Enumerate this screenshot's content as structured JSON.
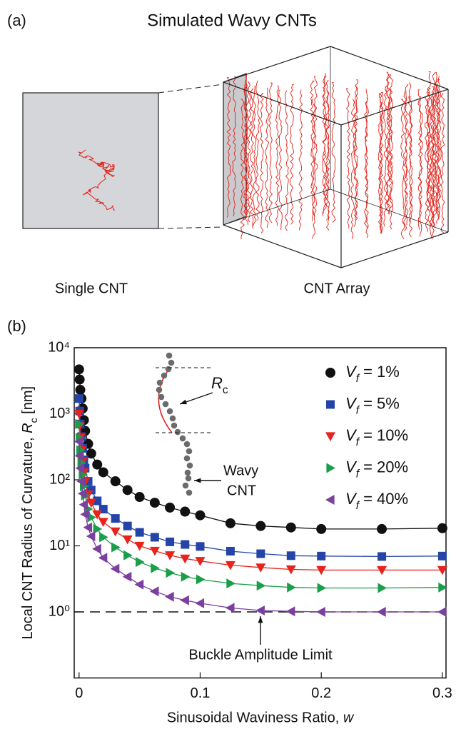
{
  "panel_a": {
    "label": "(a)",
    "title": "Simulated Wavy CNTs",
    "left_caption": "Single CNT",
    "right_caption": "CNT Array"
  },
  "chart_data": {
    "type": "line",
    "panel_label": "(b)",
    "xlabel": "Sinusoidal Waviness Ratio, w",
    "ylabel": "Local CNT Radius of Curvature, Rc [nm]",
    "log_y": true,
    "xlim": [
      -0.004,
      0.303
    ],
    "xticks": [
      0,
      0.1,
      0.2,
      0.3
    ],
    "ylim": [
      0.1,
      10000
    ],
    "yticks": [
      {
        "value": 1,
        "label": "10⁰"
      },
      {
        "value": 10,
        "label": "10¹"
      },
      {
        "value": 100,
        "label": "10²"
      },
      {
        "value": 1000,
        "label": "10³"
      },
      {
        "value": 10000,
        "label": "10⁴"
      }
    ],
    "legend": "upper right",
    "reference_line": 1,
    "annotations": {
      "rc": "Rc",
      "wavy": "Wavy",
      "cnt": "CNT",
      "limit": "Buckle Amplitude Limit"
    },
    "x": [
      0,
      0.0005,
      0.001,
      0.002,
      0.003,
      0.004,
      0.005,
      0.0075,
      0.01,
      0.015,
      0.02,
      0.03,
      0.04,
      0.05,
      0.0625,
      0.075,
      0.0875,
      0.1,
      0.125,
      0.15,
      0.175,
      0.2,
      0.25,
      0.3
    ],
    "series": [
      {
        "name": "Vf = 1%",
        "color": "#111111",
        "marker": "circle",
        "values": [
          4700,
          3300,
          2300,
          1700,
          1200,
          800,
          550,
          350,
          250,
          170,
          130,
          95,
          70,
          55,
          45,
          38,
          33,
          29,
          22,
          20,
          19,
          18,
          18,
          18.5
        ]
      },
      {
        "name": "Vf = 5%",
        "color": "#2444a8",
        "marker": "square",
        "values": [
          1700,
          1100,
          700,
          450,
          300,
          200,
          150,
          95,
          70,
          48,
          36,
          26,
          20,
          16,
          13.5,
          11.5,
          10.5,
          9.8,
          8.3,
          7.6,
          7.1,
          7,
          6.9,
          7
        ]
      },
      {
        "name": "Vf = 10%",
        "color": "#e8221c",
        "marker": "triangle-down",
        "values": [
          1000,
          650,
          430,
          280,
          190,
          130,
          95,
          60,
          45,
          30,
          23,
          16.5,
          12.5,
          10,
          8.4,
          7.2,
          6.4,
          5.9,
          5.1,
          4.7,
          4.4,
          4.3,
          4.3,
          4.3
        ]
      },
      {
        "name": "Vf = 20%",
        "color": "#1a9e4a",
        "marker": "triangle-right",
        "values": [
          700,
          430,
          280,
          180,
          120,
          80,
          58,
          36,
          27,
          18,
          13.5,
          9.5,
          7.2,
          5.7,
          4.6,
          3.9,
          3.4,
          3.1,
          2.7,
          2.5,
          2.35,
          2.3,
          2.3,
          2.35
        ]
      },
      {
        "name": "Vf = 40%",
        "color": "#7b3f9e",
        "marker": "triangle-left",
        "values": [
          380,
          230,
          150,
          95,
          62,
          42,
          30,
          19,
          14,
          9,
          6.6,
          4.5,
          3.4,
          2.6,
          2.05,
          1.7,
          1.5,
          1.35,
          1.15,
          1.05,
          1.02,
          1.0,
          1.0,
          1.0
        ]
      }
    ]
  }
}
